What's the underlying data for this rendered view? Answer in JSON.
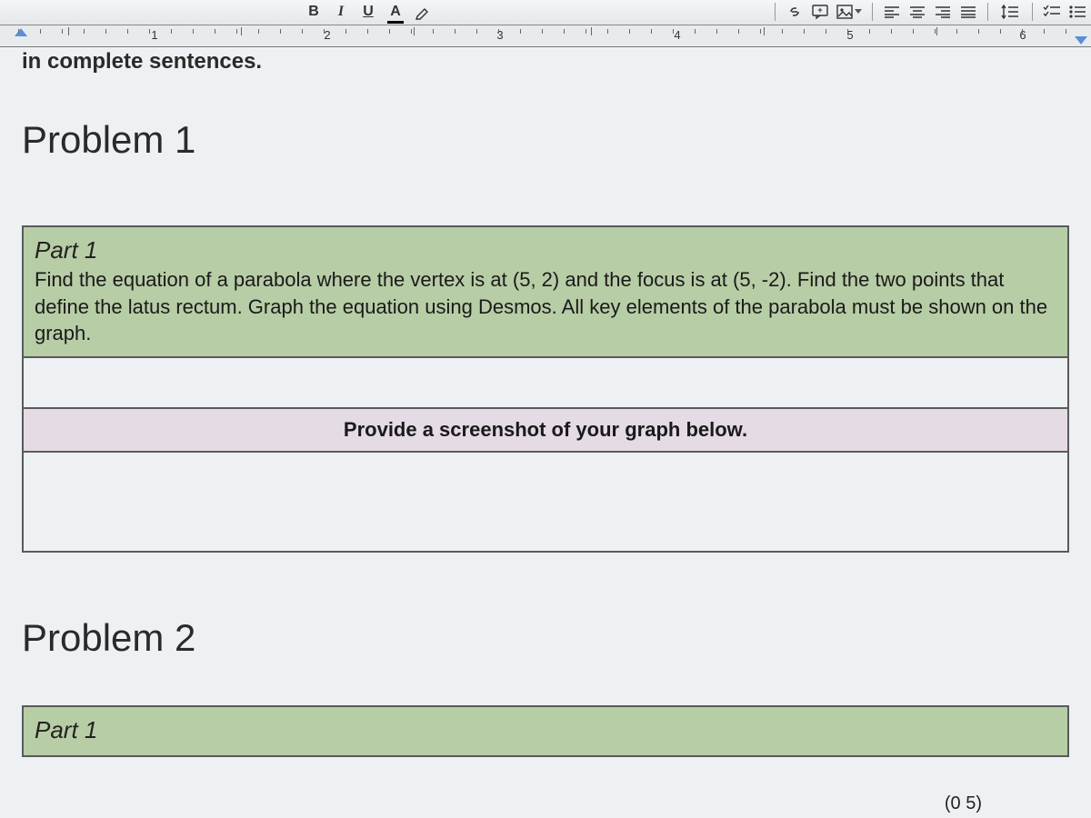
{
  "toolbar": {
    "icons": [
      "bold",
      "italic",
      "underline",
      "text-color",
      "highlight",
      "link",
      "comment",
      "image",
      "align-left",
      "align-center",
      "align-right",
      "align-justify",
      "line-spacing",
      "checklist",
      "numbered-list"
    ]
  },
  "ruler": {
    "numbers": [
      1,
      2,
      3,
      4,
      5,
      6
    ]
  },
  "document": {
    "fragment_top": "in complete sentences.",
    "problem1_heading": "Problem 1",
    "part1_title": "Part 1",
    "part1_body": "Find the equation of a parabola where the vertex is at (5, 2) and the focus is at (5, -2). Find the two points that define the latus rectum. Graph the equation using Desmos. All key elements of the parabola must be shown on the graph.",
    "screenshot_prompt": "Provide a screenshot of your graph below.",
    "problem2_heading": "Problem 2",
    "part1_title2": "Part 1",
    "bottom_fragment": "(0  5)"
  },
  "colors": {
    "part_header_bg": "#b7cda6",
    "screenshot_row_bg": "#e4dbe4",
    "page_bg": "#eef1f3",
    "border": "#5a5a5a"
  }
}
